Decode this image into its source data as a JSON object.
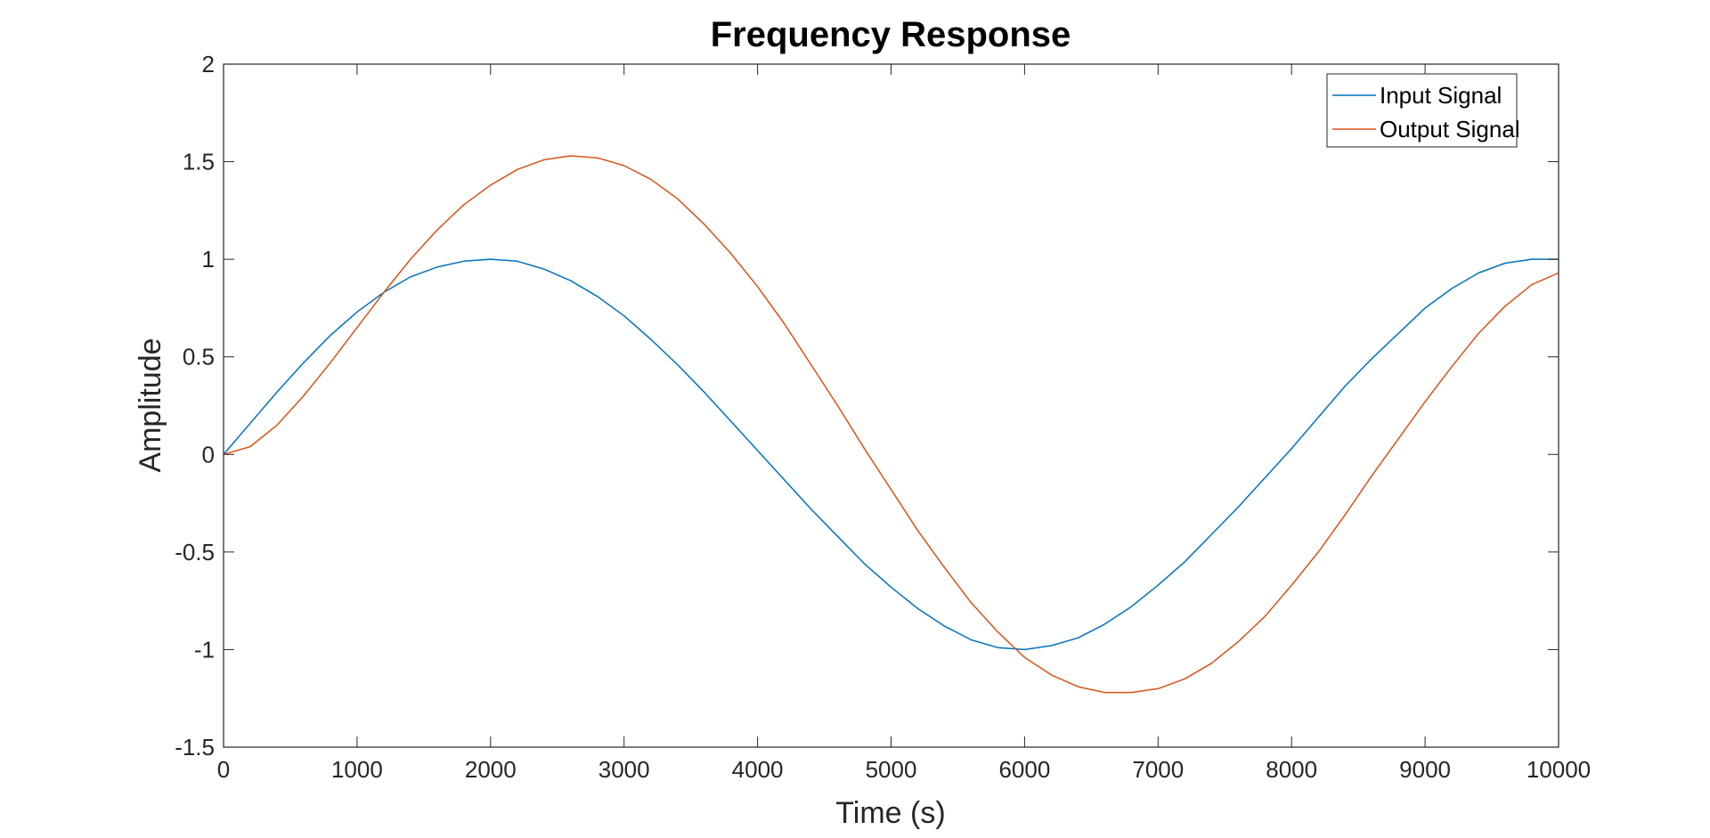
{
  "chart_data": {
    "type": "line",
    "title": "Frequency Response",
    "xlabel": "Time (s)",
    "ylabel": "Amplitude",
    "xlim": [
      0,
      10000
    ],
    "ylim": [
      -1.5,
      2
    ],
    "xticks": [
      0,
      1000,
      2000,
      3000,
      4000,
      5000,
      6000,
      7000,
      8000,
      9000,
      10000
    ],
    "yticks": [
      2,
      1.5,
      1,
      0.5,
      0,
      -0.5,
      -1,
      -1.5
    ],
    "grid": false,
    "legend_position": "top-right",
    "series": [
      {
        "name": "Input Signal",
        "color": "#0072BD",
        "x": [
          0,
          200,
          400,
          600,
          800,
          1000,
          1200,
          1400,
          1600,
          1800,
          2000,
          2200,
          2400,
          2600,
          2800,
          3000,
          3200,
          3400,
          3600,
          3800,
          4000,
          4200,
          4400,
          4600,
          4800,
          5000,
          5200,
          5400,
          5600,
          5800,
          6000,
          6200,
          6400,
          6600,
          6800,
          7000,
          7200,
          7400,
          7600,
          7800,
          8000,
          8200,
          8400,
          8600,
          8800,
          9000,
          9200,
          9400,
          9600,
          9800,
          10000
        ],
        "y": [
          0,
          0.16,
          0.32,
          0.47,
          0.61,
          0.73,
          0.83,
          0.91,
          0.96,
          0.99,
          1.0,
          0.99,
          0.95,
          0.89,
          0.81,
          0.71,
          0.59,
          0.46,
          0.32,
          0.17,
          0.02,
          -0.13,
          -0.28,
          -0.42,
          -0.56,
          -0.68,
          -0.79,
          -0.88,
          -0.95,
          -0.99,
          -1.0,
          -0.98,
          -0.94,
          -0.87,
          -0.78,
          -0.67,
          -0.55,
          -0.41,
          -0.27,
          -0.12,
          0.03,
          0.19,
          0.35,
          0.49,
          0.62,
          0.75,
          0.85,
          0.93,
          0.98,
          1.0,
          1.0
        ]
      },
      {
        "name": "Output Signal",
        "color": "#D95319",
        "x": [
          0,
          200,
          400,
          600,
          800,
          1000,
          1200,
          1400,
          1600,
          1800,
          2000,
          2200,
          2400,
          2600,
          2800,
          3000,
          3200,
          3400,
          3600,
          3800,
          4000,
          4200,
          4400,
          4600,
          4800,
          5000,
          5200,
          5400,
          5600,
          5800,
          6000,
          6200,
          6400,
          6600,
          6800,
          7000,
          7200,
          7400,
          7600,
          7800,
          8000,
          8200,
          8400,
          8600,
          8800,
          9000,
          9200,
          9400,
          9600,
          9800,
          10000
        ],
        "y": [
          0,
          0.04,
          0.15,
          0.3,
          0.47,
          0.65,
          0.83,
          1.0,
          1.15,
          1.28,
          1.38,
          1.46,
          1.51,
          1.53,
          1.52,
          1.48,
          1.41,
          1.31,
          1.18,
          1.03,
          0.86,
          0.67,
          0.46,
          0.25,
          0.03,
          -0.18,
          -0.39,
          -0.58,
          -0.76,
          -0.91,
          -1.04,
          -1.13,
          -1.19,
          -1.22,
          -1.22,
          -1.2,
          -1.15,
          -1.07,
          -0.96,
          -0.83,
          -0.67,
          -0.5,
          -0.31,
          -0.11,
          0.08,
          0.27,
          0.45,
          0.62,
          0.76,
          0.87,
          0.93
        ]
      }
    ]
  }
}
